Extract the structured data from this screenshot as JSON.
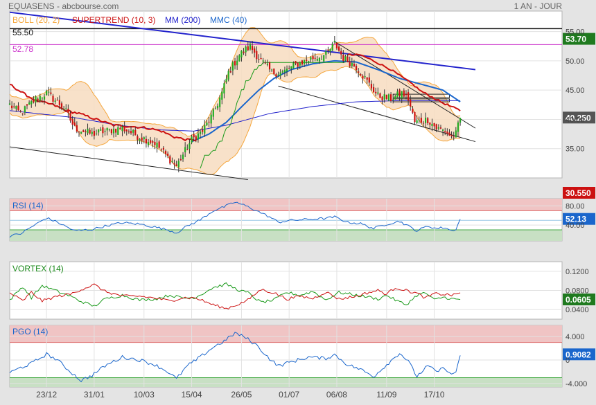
{
  "header": {
    "symbol": "EQUASENS - abcbourse.com",
    "period": "1 AN - JOUR"
  },
  "colors": {
    "background": "#e4e4e4",
    "panel": "#ffffff",
    "boll": "#f5a63b",
    "boll_fill": "#f7dcc0",
    "supertrend": "#cc1111",
    "mm200": "#2222cc",
    "mmc40": "#1a66cc",
    "rsi": "#1a66cc",
    "vortex_plus": "#1a9a1a",
    "vortex_minus": "#cc1111",
    "pgo": "#1a66cc",
    "zone_high": "#f0c4c4",
    "zone_low": "#c8e0c4",
    "candle_up": "#22aa22",
    "candle_down": "#cc1111",
    "last_price_badge": "#555555",
    "high_badge": "#1f7a1f",
    "low_badge": "#cc1111"
  },
  "chart_data": [
    {
      "panel": "price",
      "type": "candlestick",
      "legend": [
        "BOLL (20, 2)",
        "SUPERTREND (10, 3)",
        "MM (200)",
        "MMC (40)"
      ],
      "levels": [
        {
          "label": "55.50",
          "value": 55.5
        },
        {
          "label": "52.78",
          "value": 52.78
        }
      ],
      "yticks": [
        35,
        40,
        45,
        50,
        55
      ],
      "ytick_labels": [
        "35.00",
        "40.00",
        "45.00",
        "50.00",
        "55.00"
      ],
      "ylim": [
        30,
        58.5
      ],
      "badges": {
        "high": "53.70",
        "last": "40.250",
        "low": "30.550"
      },
      "xlim": [
        0,
        255
      ],
      "xtick_positions": [
        17,
        39,
        62,
        84,
        107,
        129,
        151,
        174,
        196
      ],
      "xtick_labels": [
        "23/12",
        "31/01",
        "10/03",
        "15/04",
        "26/05",
        "01/07",
        "06/08",
        "11/09",
        "17/10"
      ],
      "close_knots": [
        [
          0,
          42.5
        ],
        [
          5,
          41.0
        ],
        [
          12,
          43.5
        ],
        [
          17,
          44.5
        ],
        [
          25,
          42.0
        ],
        [
          30,
          38.5
        ],
        [
          38,
          37.5
        ],
        [
          44,
          38.0
        ],
        [
          52,
          38.5
        ],
        [
          60,
          37.0
        ],
        [
          67,
          36.0
        ],
        [
          73,
          33.5
        ],
        [
          77,
          32.0
        ],
        [
          80,
          34.0
        ],
        [
          84,
          36.5
        ],
        [
          89,
          38.0
        ],
        [
          94,
          41.0
        ],
        [
          98,
          44.5
        ],
        [
          101,
          48.0
        ],
        [
          106,
          51.0
        ],
        [
          111,
          52.5
        ],
        [
          116,
          50.0
        ],
        [
          121,
          48.0
        ],
        [
          126,
          48.0
        ],
        [
          133,
          49.5
        ],
        [
          140,
          50.5
        ],
        [
          146,
          51.0
        ],
        [
          150,
          53.0
        ],
        [
          154,
          50.5
        ],
        [
          160,
          49.0
        ],
        [
          166,
          46.0
        ],
        [
          170,
          44.0
        ],
        [
          176,
          43.5
        ],
        [
          181,
          44.5
        ],
        [
          184,
          43.5
        ],
        [
          187,
          39.5
        ],
        [
          193,
          40.0
        ],
        [
          197,
          38.5
        ],
        [
          201,
          38.0
        ],
        [
          204,
          37.0
        ],
        [
          206,
          37.5
        ],
        [
          208,
          40.25
        ]
      ],
      "mm200_knots": [
        [
          0,
          41.5
        ],
        [
          30,
          40.3
        ],
        [
          50,
          39.0
        ],
        [
          70,
          38.2
        ],
        [
          85,
          38.0
        ],
        [
          100,
          39.0
        ],
        [
          120,
          41.0
        ],
        [
          140,
          42.2
        ],
        [
          160,
          43.0
        ],
        [
          180,
          43.2
        ],
        [
          208,
          43.2
        ]
      ],
      "mmc40_knots": [
        [
          84,
          36.2
        ],
        [
          92,
          37.5
        ],
        [
          100,
          39.5
        ],
        [
          108,
          42.5
        ],
        [
          115,
          45.0
        ],
        [
          122,
          47.0
        ],
        [
          130,
          48.5
        ],
        [
          140,
          49.5
        ],
        [
          150,
          50.0
        ],
        [
          160,
          49.8
        ],
        [
          170,
          48.5
        ],
        [
          180,
          47.0
        ],
        [
          190,
          46.0
        ],
        [
          200,
          45.0
        ],
        [
          208,
          43.0
        ]
      ],
      "supertrend_red_knots": [
        [
          0,
          46.0
        ],
        [
          6,
          44.5
        ],
        [
          12,
          43.2
        ],
        [
          20,
          42.5
        ],
        [
          26,
          41.5
        ],
        [
          32,
          41.0
        ],
        [
          40,
          40.0
        ],
        [
          48,
          39.0
        ],
        [
          56,
          38.8
        ],
        [
          64,
          38.5
        ],
        [
          70,
          38.0
        ],
        [
          76,
          37.0
        ],
        [
          82,
          36.5
        ],
        [
          86,
          36.5
        ]
      ],
      "supertrend_red2_knots": [
        [
          156,
          51.0
        ],
        [
          162,
          51.0
        ],
        [
          168,
          50.0
        ],
        [
          176,
          48.5
        ],
        [
          182,
          47.0
        ],
        [
          186,
          46.0
        ],
        [
          190,
          44.8
        ],
        [
          195,
          43.8
        ],
        [
          200,
          42.8
        ],
        [
          205,
          42.0
        ],
        [
          208,
          41.5
        ]
      ],
      "trendlines": [
        {
          "name": "mm-resistance",
          "points": [
            [
              0,
              58.3
            ],
            [
              215,
              48.5
            ]
          ]
        },
        {
          "name": "lower-channel",
          "points": [
            [
              0,
              35.3
            ],
            [
              110,
              29.7
            ]
          ]
        },
        {
          "name": "triangle-upper",
          "points": [
            [
              150,
              53.3
            ],
            [
              215,
              38.5
            ]
          ]
        },
        {
          "name": "triangle-lower",
          "points": [
            [
              124,
              45.7
            ],
            [
              215,
              36.2
            ]
          ]
        }
      ],
      "boxes": [
        {
          "name": "box-upper",
          "x": [
            177,
            203
          ],
          "y": [
            43.7,
            44.3
          ]
        },
        {
          "name": "box-lower",
          "x": [
            177,
            203
          ],
          "y": [
            43.0,
            43.5
          ]
        }
      ]
    },
    {
      "panel": "rsi",
      "type": "line",
      "legend": [
        "RSI (14)"
      ],
      "ylim": [
        7,
        95
      ],
      "yticks": [
        40,
        80
      ],
      "ytick_labels": [
        "40.00",
        "80.00"
      ],
      "zones": {
        "high": 70,
        "low": 30,
        "mid": 50
      },
      "badge": "52.13",
      "knots": [
        [
          0,
          17
        ],
        [
          5,
          22
        ],
        [
          10,
          36
        ],
        [
          17,
          55
        ],
        [
          22,
          46
        ],
        [
          30,
          28
        ],
        [
          38,
          31
        ],
        [
          44,
          38
        ],
        [
          52,
          45
        ],
        [
          60,
          42
        ],
        [
          67,
          36
        ],
        [
          73,
          30
        ],
        [
          77,
          24
        ],
        [
          82,
          38
        ],
        [
          88,
          51
        ],
        [
          94,
          70
        ],
        [
          99,
          78
        ],
        [
          104,
          88
        ],
        [
          109,
          80
        ],
        [
          114,
          70
        ],
        [
          120,
          57
        ],
        [
          124,
          46
        ],
        [
          130,
          50
        ],
        [
          138,
          52
        ],
        [
          146,
          54
        ],
        [
          150,
          57
        ],
        [
          156,
          46
        ],
        [
          162,
          43
        ],
        [
          168,
          33
        ],
        [
          174,
          42
        ],
        [
          180,
          48
        ],
        [
          184,
          38
        ],
        [
          188,
          28
        ],
        [
          193,
          38
        ],
        [
          197,
          33
        ],
        [
          201,
          35
        ],
        [
          204,
          28
        ],
        [
          206,
          32
        ],
        [
          208,
          52.13
        ]
      ]
    },
    {
      "panel": "vortex",
      "type": "line",
      "legend": [
        "VORTEX (14)"
      ],
      "ylim": [
        0.02,
        0.14
      ],
      "yticks": [
        0.04,
        0.08,
        0.12
      ],
      "ytick_labels": [
        "0.0400",
        "0.0800",
        "0.1200"
      ],
      "badge": "0.0605",
      "series": [
        {
          "name": "VI+",
          "knots": [
            [
              0,
              0.06
            ],
            [
              6,
              0.088
            ],
            [
              10,
              0.065
            ],
            [
              15,
              0.09
            ],
            [
              22,
              0.078
            ],
            [
              28,
              0.068
            ],
            [
              33,
              0.057
            ],
            [
              39,
              0.047
            ],
            [
              44,
              0.062
            ],
            [
              52,
              0.07
            ],
            [
              60,
              0.06
            ],
            [
              67,
              0.062
            ],
            [
              74,
              0.07
            ],
            [
              80,
              0.064
            ],
            [
              86,
              0.066
            ],
            [
              94,
              0.086
            ],
            [
              100,
              0.093
            ],
            [
              106,
              0.08
            ],
            [
              110,
              0.075
            ],
            [
              116,
              0.055
            ],
            [
              122,
              0.06
            ],
            [
              128,
              0.076
            ],
            [
              134,
              0.07
            ],
            [
              140,
              0.078
            ],
            [
              146,
              0.06
            ],
            [
              152,
              0.076
            ],
            [
              160,
              0.07
            ],
            [
              166,
              0.066
            ],
            [
              170,
              0.062
            ],
            [
              174,
              0.07
            ],
            [
              178,
              0.06
            ],
            [
              183,
              0.05
            ],
            [
              188,
              0.07
            ],
            [
              192,
              0.075
            ],
            [
              196,
              0.06
            ],
            [
              200,
              0.066
            ],
            [
              205,
              0.062
            ],
            [
              208,
              0.06
            ]
          ]
        },
        {
          "name": "VI-",
          "knots": [
            [
              0,
              0.075
            ],
            [
              6,
              0.058
            ],
            [
              10,
              0.076
            ],
            [
              15,
              0.058
            ],
            [
              22,
              0.068
            ],
            [
              28,
              0.072
            ],
            [
              33,
              0.082
            ],
            [
              39,
              0.092
            ],
            [
              44,
              0.078
            ],
            [
              52,
              0.068
            ],
            [
              60,
              0.068
            ],
            [
              67,
              0.064
            ],
            [
              74,
              0.058
            ],
            [
              80,
              0.065
            ],
            [
              86,
              0.064
            ],
            [
              94,
              0.05
            ],
            [
              100,
              0.042
            ],
            [
              106,
              0.052
            ],
            [
              110,
              0.06
            ],
            [
              116,
              0.082
            ],
            [
              122,
              0.075
            ],
            [
              128,
              0.062
            ],
            [
              134,
              0.068
            ],
            [
              140,
              0.063
            ],
            [
              146,
              0.077
            ],
            [
              152,
              0.062
            ],
            [
              160,
              0.068
            ],
            [
              166,
              0.076
            ],
            [
              170,
              0.08
            ],
            [
              174,
              0.072
            ],
            [
              178,
              0.086
            ],
            [
              183,
              0.08
            ],
            [
              188,
              0.074
            ],
            [
              192,
              0.064
            ],
            [
              196,
              0.073
            ],
            [
              200,
              0.072
            ],
            [
              205,
              0.07
            ],
            [
              208,
              0.076
            ]
          ]
        }
      ]
    },
    {
      "panel": "pgo",
      "type": "line",
      "legend": [
        "PGO (14)"
      ],
      "ylim": [
        -4.6,
        5.9
      ],
      "yticks": [
        -4,
        0,
        4
      ],
      "ytick_labels": [
        "-4.000",
        "0",
        "4.000"
      ],
      "zones": {
        "high": 3.0,
        "low": -3.0
      },
      "badge": "0.9082",
      "knots": [
        [
          0,
          -2.2
        ],
        [
          5,
          -1.3
        ],
        [
          10,
          -0.6
        ],
        [
          17,
          1.0
        ],
        [
          22,
          0.0
        ],
        [
          28,
          -2.0
        ],
        [
          33,
          -3.5
        ],
        [
          38,
          -2.6
        ],
        [
          44,
          -1.0
        ],
        [
          52,
          0.5
        ],
        [
          60,
          0.0
        ],
        [
          67,
          -0.8
        ],
        [
          73,
          -2.0
        ],
        [
          77,
          -3.2
        ],
        [
          82,
          -1.0
        ],
        [
          88,
          0.5
        ],
        [
          94,
          2.2
        ],
        [
          99,
          3.2
        ],
        [
          104,
          4.6
        ],
        [
          109,
          3.8
        ],
        [
          114,
          2.5
        ],
        [
          120,
          0.2
        ],
        [
          124,
          -1.0
        ],
        [
          130,
          -0.3
        ],
        [
          138,
          0.5
        ],
        [
          146,
          0.3
        ],
        [
          150,
          0.9
        ],
        [
          156,
          -0.8
        ],
        [
          162,
          -1.6
        ],
        [
          168,
          -2.8
        ],
        [
          174,
          -0.8
        ],
        [
          180,
          1.2
        ],
        [
          184,
          -0.2
        ],
        [
          188,
          -2.8
        ],
        [
          193,
          -1.0
        ],
        [
          197,
          -2.0
        ],
        [
          201,
          -1.3
        ],
        [
          204,
          -2.6
        ],
        [
          206,
          -2.0
        ],
        [
          208,
          0.9082
        ]
      ]
    }
  ]
}
